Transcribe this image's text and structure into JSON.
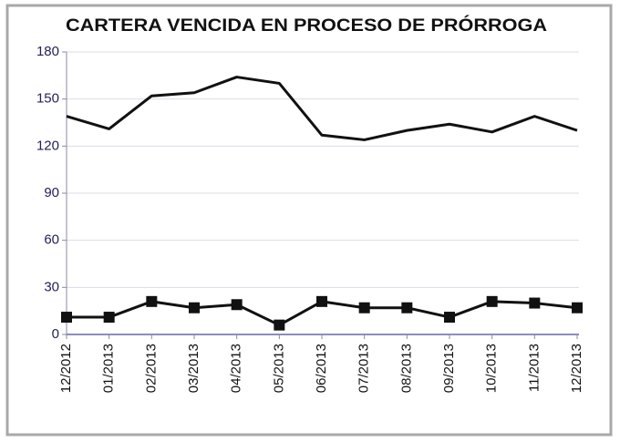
{
  "chart_data": {
    "type": "line",
    "title": "CARTERA VENCIDA EN PROCESO DE PRÓRROGA",
    "categories": [
      "12/2012",
      "01/2013",
      "02/2013",
      "03/2013",
      "04/2013",
      "05/2013",
      "06/2013",
      "07/2013",
      "08/2013",
      "09/2013",
      "10/2013",
      "11/2013",
      "12/2013"
    ],
    "series": [
      {
        "color": "#111111",
        "marker": "none",
        "values": [
          139,
          131,
          152,
          154,
          164,
          160,
          127,
          124,
          130,
          134,
          129,
          139,
          130
        ]
      },
      {
        "color": "#111111",
        "marker": "square",
        "values": [
          11,
          11,
          21,
          17,
          19,
          6,
          21,
          17,
          17,
          11,
          21,
          20,
          17
        ]
      }
    ],
    "ylim": [
      0,
      180
    ],
    "yticks": [
      0,
      30,
      60,
      90,
      120,
      150,
      180
    ],
    "grid": true
  }
}
